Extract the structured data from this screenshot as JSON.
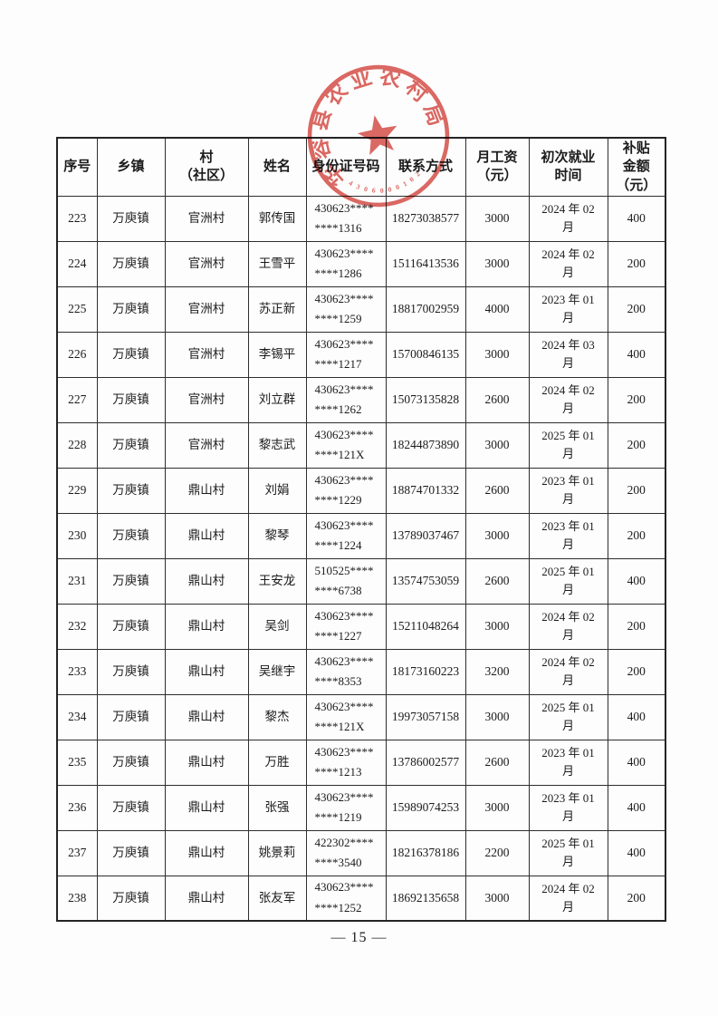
{
  "colors": {
    "stamp_red": "#d8544e",
    "table_border": "#2e2e2e",
    "text": "#1b1b1b"
  },
  "stamp": {
    "arc_text": "华容县农业农村局",
    "serial": "4306000102"
  },
  "table": {
    "headers": [
      "序号",
      "乡镇",
      "村\n（社区）",
      "姓名",
      "身份证号码",
      "联系方式",
      "月工资\n（元）",
      "初次就业\n时间",
      "补贴\n金额\n（元）"
    ],
    "rows": [
      [
        "223",
        "万庾镇",
        "官洲村",
        "郭传国",
        "430623****\n****1316",
        "18273038577",
        "3000",
        "2024 年 02\n月",
        "400"
      ],
      [
        "224",
        "万庾镇",
        "官洲村",
        "王雪平",
        "430623****\n****1286",
        "15116413536",
        "3000",
        "2024 年 02\n月",
        "200"
      ],
      [
        "225",
        "万庾镇",
        "官洲村",
        "苏正新",
        "430623****\n****1259",
        "18817002959",
        "4000",
        "2023 年 01\n月",
        "200"
      ],
      [
        "226",
        "万庾镇",
        "官洲村",
        "李锡平",
        "430623****\n****1217",
        "15700846135",
        "3000",
        "2024 年 03\n月",
        "400"
      ],
      [
        "227",
        "万庾镇",
        "官洲村",
        "刘立群",
        "430623****\n****1262",
        "15073135828",
        "2600",
        "2024 年 02\n月",
        "200"
      ],
      [
        "228",
        "万庾镇",
        "官洲村",
        "黎志武",
        "430623****\n****121X",
        "18244873890",
        "3000",
        "2025 年 01\n月",
        "200"
      ],
      [
        "229",
        "万庾镇",
        "鼎山村",
        "刘娟",
        "430623****\n****1229",
        "18874701332",
        "2600",
        "2023 年 01\n月",
        "200"
      ],
      [
        "230",
        "万庾镇",
        "鼎山村",
        "黎琴",
        "430623****\n****1224",
        "13789037467",
        "3000",
        "2023 年 01\n月",
        "200"
      ],
      [
        "231",
        "万庾镇",
        "鼎山村",
        "王安龙",
        "510525****\n****6738",
        "13574753059",
        "2600",
        "2025 年 01\n月",
        "400"
      ],
      [
        "232",
        "万庾镇",
        "鼎山村",
        "吴剑",
        "430623****\n****1227",
        "15211048264",
        "3000",
        "2024 年 02\n月",
        "200"
      ],
      [
        "233",
        "万庾镇",
        "鼎山村",
        "吴继宇",
        "430623****\n****8353",
        "18173160223",
        "3200",
        "2024 年 02\n月",
        "200"
      ],
      [
        "234",
        "万庾镇",
        "鼎山村",
        "黎杰",
        "430623****\n****121X",
        "19973057158",
        "3000",
        "2025 年 01\n月",
        "400"
      ],
      [
        "235",
        "万庾镇",
        "鼎山村",
        "万胜",
        "430623****\n****1213",
        "13786002577",
        "2600",
        "2023 年 01\n月",
        "400"
      ],
      [
        "236",
        "万庾镇",
        "鼎山村",
        "张强",
        "430623****\n****1219",
        "15989074253",
        "3000",
        "2023 年 01\n月",
        "400"
      ],
      [
        "237",
        "万庾镇",
        "鼎山村",
        "姚景莉",
        "422302****\n****3540",
        "18216378186",
        "2200",
        "2025 年 01\n月",
        "400"
      ],
      [
        "238",
        "万庾镇",
        "鼎山村",
        "张友军",
        "430623****\n****1252",
        "18692135658",
        "3000",
        "2024 年 02\n月",
        "200"
      ]
    ]
  },
  "footer": {
    "page_number": "— 15 —"
  }
}
